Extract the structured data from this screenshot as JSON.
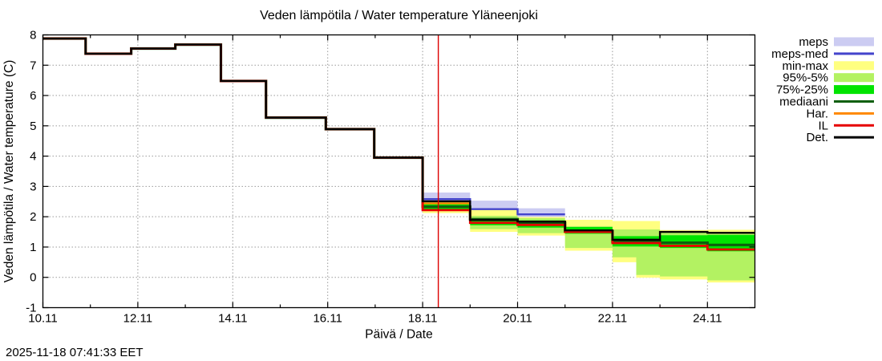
{
  "page": {
    "background": "#ffffff",
    "timestamp": "2025-11-18 07:41:33 EET"
  },
  "chart_data": {
    "type": "line",
    "title": "Veden lämpötila / Water temperature Yläneenjoki",
    "xlabel": "Päivä / Date",
    "ylabel": "Veden lämpötila / Water temperature (C)",
    "timestamp": "2025-11-18 07:41:33 EET",
    "grid": true,
    "ylim": [
      -1,
      8
    ],
    "x_domain_days_nov": [
      10,
      25
    ],
    "y_ticks": [
      -1,
      0,
      1,
      2,
      3,
      4,
      5,
      6,
      7,
      8
    ],
    "x_major_ticks": [
      {
        "day": 10,
        "label": "10.11"
      },
      {
        "day": 12,
        "label": "12.11"
      },
      {
        "day": 14,
        "label": "14.11"
      },
      {
        "day": 16,
        "label": "16.11"
      },
      {
        "day": 18,
        "label": "18.11"
      },
      {
        "day": 20,
        "label": "20.11"
      },
      {
        "day": 22,
        "label": "22.11"
      },
      {
        "day": 24,
        "label": "24.11"
      }
    ],
    "x_minor_tick_days": [
      11,
      13,
      15,
      17,
      19,
      21,
      23
    ],
    "now_marker": {
      "day": 18.33,
      "color": "#dd0000"
    },
    "colors": {
      "meps_band": "#ccccf2",
      "meps_med": "#4444cc",
      "min_max": "#ffff80",
      "p95_5": "#b3f262",
      "p75_25": "#00e400",
      "mediaani": "#0e5f0e",
      "har": "#ff8800",
      "il": "#e60000",
      "det": "#000000",
      "grid": "#9a9a9a"
    },
    "bands": [
      {
        "name": "meps",
        "color": "#ccccf2",
        "segments": [
          [
            18,
            19,
            2.56,
            2.8
          ],
          [
            19,
            20,
            2.25,
            2.53
          ],
          [
            20,
            21,
            1.99,
            2.28
          ]
        ]
      },
      {
        "name": "min-max",
        "color": "#ffff80",
        "segments": [
          [
            18,
            19,
            2.12,
            2.5
          ],
          [
            19,
            20,
            1.5,
            2.25
          ],
          [
            20,
            21,
            1.38,
            1.99
          ],
          [
            21,
            22,
            0.88,
            1.9
          ],
          [
            22,
            22.5,
            0.5,
            1.86
          ],
          [
            22.5,
            23,
            -0.01,
            1.86
          ],
          [
            23,
            24,
            -0.07,
            1.56
          ],
          [
            24,
            25,
            -0.17,
            1.57
          ]
        ]
      },
      {
        "name": "95%-5%",
        "color": "#b3f262",
        "segments": [
          [
            18,
            19,
            2.2,
            2.48
          ],
          [
            19,
            20,
            1.59,
            2.03
          ],
          [
            20,
            21,
            1.46,
            1.95
          ],
          [
            21,
            22,
            0.97,
            1.69
          ],
          [
            22,
            22.5,
            0.66,
            1.58
          ],
          [
            22.5,
            23,
            0.08,
            1.58
          ],
          [
            23,
            24,
            0.03,
            1.5
          ],
          [
            24,
            25,
            -0.1,
            1.5
          ]
        ]
      },
      {
        "name": "75%-25%",
        "color": "#00e400",
        "segments": [
          [
            18,
            19,
            2.24,
            2.42
          ],
          [
            19,
            20,
            1.72,
            1.93
          ],
          [
            20,
            21,
            1.64,
            1.88
          ],
          [
            21,
            22,
            1.44,
            1.66
          ],
          [
            22,
            23,
            1.02,
            1.36
          ],
          [
            23,
            24,
            0.97,
            1.39
          ],
          [
            24,
            25,
            0.86,
            1.4
          ]
        ]
      }
    ],
    "lines": [
      {
        "name": "meps-med",
        "color": "#4444cc",
        "segments": [
          [
            18,
            19,
            2.58
          ],
          [
            19,
            20,
            2.25
          ],
          [
            20,
            21,
            2.08
          ]
        ]
      },
      {
        "name": "mediaani",
        "color": "#0e5f0e",
        "segments": [
          [
            10,
            10.9,
            7.88
          ],
          [
            10.9,
            11.86,
            7.38
          ],
          [
            11.86,
            12.79,
            7.55
          ],
          [
            12.79,
            13.75,
            7.68
          ],
          [
            13.75,
            14.7,
            6.48
          ],
          [
            14.7,
            15.96,
            5.27
          ],
          [
            15.96,
            16.98,
            4.89
          ],
          [
            16.98,
            18,
            3.95
          ],
          [
            18,
            19,
            2.33
          ],
          [
            19,
            20,
            1.92
          ],
          [
            20,
            21,
            1.8
          ],
          [
            21,
            22,
            1.52
          ],
          [
            22,
            23,
            1.18
          ],
          [
            23,
            24,
            1.14
          ],
          [
            24,
            25,
            1.07
          ]
        ]
      },
      {
        "name": "Har.",
        "color": "#ff8800",
        "segments": [
          [
            18,
            19,
            2.44
          ]
        ]
      },
      {
        "name": "IL",
        "color": "#e60000",
        "segments": [
          [
            10,
            10.9,
            7.88
          ],
          [
            10.9,
            11.86,
            7.38
          ],
          [
            11.86,
            12.79,
            7.55
          ],
          [
            12.79,
            13.75,
            7.68
          ],
          [
            13.75,
            14.7,
            6.48
          ],
          [
            14.7,
            15.96,
            5.27
          ],
          [
            15.96,
            16.98,
            4.89
          ],
          [
            16.98,
            18,
            3.95
          ],
          [
            18,
            19,
            2.22
          ],
          [
            19,
            20,
            1.8
          ],
          [
            20,
            21,
            1.73
          ],
          [
            21,
            22,
            1.5
          ],
          [
            22,
            23,
            1.13
          ],
          [
            23,
            24,
            1.04
          ],
          [
            24,
            25,
            0.92
          ]
        ]
      },
      {
        "name": "Det.",
        "color": "#000000",
        "segments": [
          [
            10,
            10.9,
            7.88
          ],
          [
            10.9,
            11.86,
            7.38
          ],
          [
            11.86,
            12.79,
            7.55
          ],
          [
            12.79,
            13.75,
            7.68
          ],
          [
            13.75,
            14.7,
            6.48
          ],
          [
            14.7,
            15.96,
            5.27
          ],
          [
            15.96,
            16.98,
            4.89
          ],
          [
            16.98,
            18,
            3.95
          ],
          [
            18,
            19,
            2.51
          ],
          [
            19,
            20,
            1.89
          ],
          [
            20,
            21,
            1.84
          ],
          [
            21,
            22,
            1.55
          ],
          [
            22,
            23,
            1.24
          ],
          [
            23,
            24,
            1.5
          ],
          [
            24,
            25,
            1.47
          ]
        ]
      }
    ],
    "legend": [
      {
        "label": "meps",
        "swatch": "band",
        "color": "#ccccf2"
      },
      {
        "label": "meps-med",
        "swatch": "line",
        "color": "#4444cc"
      },
      {
        "label": "min-max",
        "swatch": "band",
        "color": "#ffff80"
      },
      {
        "label": "95%-5%",
        "swatch": "band",
        "color": "#b3f262"
      },
      {
        "label": "75%-25%",
        "swatch": "band",
        "color": "#00e400"
      },
      {
        "label": "mediaani",
        "swatch": "line",
        "color": "#0e5f0e"
      },
      {
        "label": "Har.",
        "swatch": "line",
        "color": "#ff8800"
      },
      {
        "label": "IL",
        "swatch": "line",
        "color": "#e60000"
      },
      {
        "label": "Det.",
        "swatch": "line",
        "color": "#000000"
      }
    ]
  }
}
